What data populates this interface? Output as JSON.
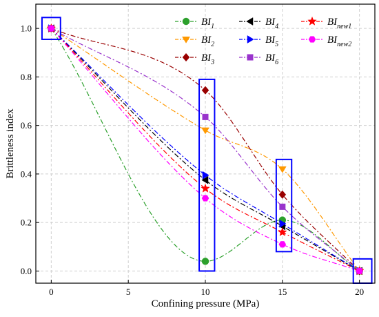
{
  "chart_data": {
    "type": "line",
    "xlabel": "Confining pressure (MPa)",
    "ylabel": "Brittleness index",
    "xlim": [
      -1,
      21
    ],
    "ylim": [
      -0.05,
      1.1
    ],
    "x_ticks": [
      "0",
      "5",
      "10",
      "15",
      "20"
    ],
    "y_ticks": [
      "0.0",
      "0.2",
      "0.4",
      "0.6",
      "0.8",
      "1.0"
    ],
    "grid": "dashed",
    "legend": "top-right",
    "x": [
      0,
      10,
      15,
      20
    ],
    "series": [
      {
        "name": "BI",
        "sub": "1",
        "color": "#2ca02c",
        "marker": "circle",
        "values": [
          1.0,
          0.04,
          0.21,
          0.0
        ]
      },
      {
        "name": "BI",
        "sub": "2",
        "color": "#ff9900",
        "marker": "triangle-down",
        "values": [
          1.0,
          0.58,
          0.42,
          0.0
        ]
      },
      {
        "name": "BI",
        "sub": "3",
        "color": "#990000",
        "marker": "diamond",
        "values": [
          1.0,
          0.745,
          0.315,
          0.0
        ]
      },
      {
        "name": "BI",
        "sub": "4",
        "color": "#000000",
        "marker": "triangle-left",
        "values": [
          1.0,
          0.375,
          0.185,
          0.0
        ]
      },
      {
        "name": "BI",
        "sub": "5",
        "color": "#0000ff",
        "marker": "triangle-right",
        "values": [
          1.0,
          0.395,
          0.195,
          0.0
        ]
      },
      {
        "name": "BI",
        "sub": "6",
        "color": "#9933cc",
        "marker": "square",
        "values": [
          1.0,
          0.635,
          0.265,
          0.0
        ]
      },
      {
        "name": "BI",
        "sub": "new1",
        "color": "#ff0000",
        "marker": "star",
        "values": [
          1.0,
          0.34,
          0.16,
          0.0
        ]
      },
      {
        "name": "BI",
        "sub": "new2",
        "color": "#ff00ff",
        "marker": "hexagon",
        "values": [
          1.0,
          0.3,
          0.11,
          0.0
        ]
      }
    ],
    "highlight_boxes": [
      {
        "x_range": [
          -0.6,
          0.6
        ],
        "y_range": [
          0.955,
          1.045
        ]
      },
      {
        "x_range": [
          9.6,
          10.6
        ],
        "y_range": [
          0.0,
          0.79
        ]
      },
      {
        "x_range": [
          14.6,
          15.6
        ],
        "y_range": [
          0.08,
          0.46
        ]
      },
      {
        "x_range": [
          19.6,
          20.8
        ],
        "y_range": [
          -0.05,
          0.05
        ]
      }
    ],
    "box_color": "#0000ff"
  }
}
